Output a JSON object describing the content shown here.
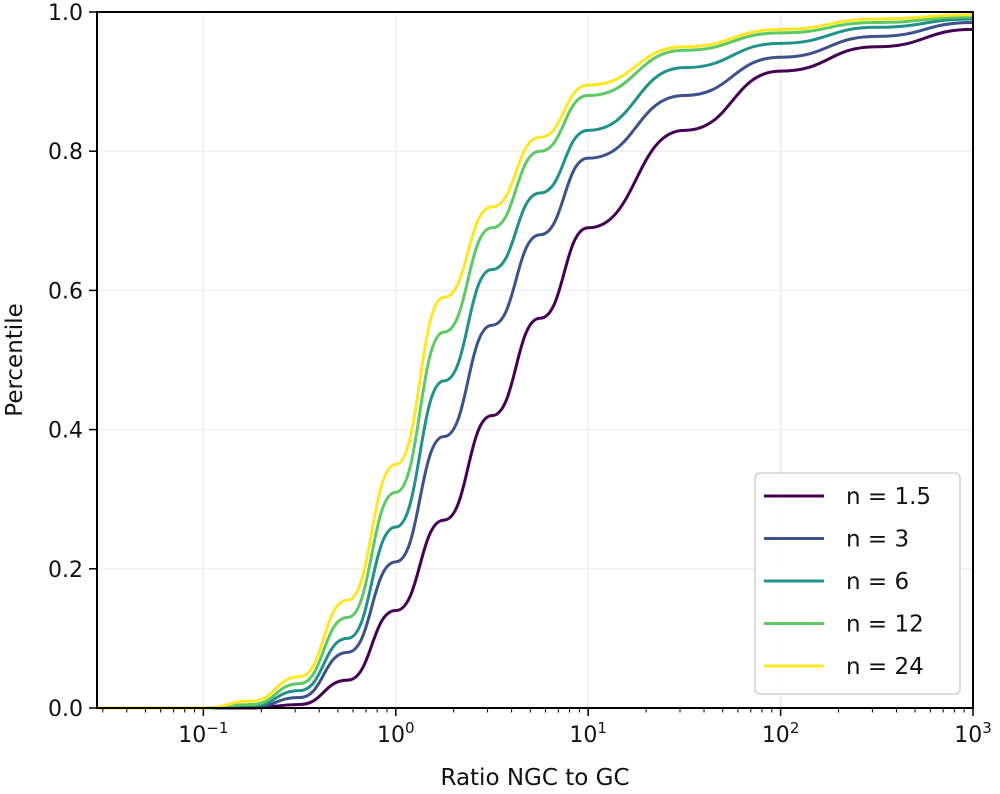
{
  "chart_data": {
    "type": "line",
    "title": "",
    "xlabel": "Ratio NGC to GC",
    "ylabel": "Percentile",
    "xscale": "log",
    "xlim": [
      0.028,
      1000
    ],
    "ylim": [
      0.0,
      1.0
    ],
    "grid": true,
    "legend_position": "lower-right",
    "x_ticks": [
      {
        "base": "10",
        "exp": "−1",
        "value": 0.1
      },
      {
        "base": "10",
        "exp": "0",
        "value": 1
      },
      {
        "base": "10",
        "exp": "1",
        "value": 10
      },
      {
        "base": "10",
        "exp": "2",
        "value": 100
      },
      {
        "base": "10",
        "exp": "3",
        "value": 1000
      }
    ],
    "y_ticks": [
      "0.0",
      "0.2",
      "0.4",
      "0.6",
      "0.8",
      "1.0"
    ],
    "x": [
      0.028,
      0.1,
      0.178,
      0.316,
      0.562,
      1,
      1.78,
      3.16,
      5.62,
      10,
      31.6,
      100,
      316,
      1000
    ],
    "series": [
      {
        "name": "n = 1.5",
        "color": "#440154",
        "values": [
          0,
          0,
          0,
          0.005,
          0.04,
          0.14,
          0.27,
          0.42,
          0.56,
          0.69,
          0.83,
          0.915,
          0.95,
          0.975
        ]
      },
      {
        "name": "n = 3",
        "color": "#3b528b",
        "values": [
          0,
          0,
          0.001,
          0.015,
          0.08,
          0.21,
          0.39,
          0.55,
          0.68,
          0.79,
          0.88,
          0.935,
          0.965,
          0.985
        ]
      },
      {
        "name": "n = 6",
        "color": "#21918c",
        "values": [
          0,
          0,
          0.003,
          0.025,
          0.1,
          0.26,
          0.47,
          0.63,
          0.74,
          0.83,
          0.92,
          0.955,
          0.978,
          0.99
        ]
      },
      {
        "name": "n = 12",
        "color": "#5ec962",
        "values": [
          0,
          0,
          0.005,
          0.035,
          0.13,
          0.31,
          0.54,
          0.69,
          0.8,
          0.88,
          0.945,
          0.97,
          0.985,
          0.993
        ]
      },
      {
        "name": "n = 24",
        "color": "#fde725",
        "values": [
          0,
          0,
          0.01,
          0.045,
          0.155,
          0.35,
          0.59,
          0.72,
          0.82,
          0.895,
          0.95,
          0.975,
          0.99,
          0.996
        ]
      }
    ]
  }
}
